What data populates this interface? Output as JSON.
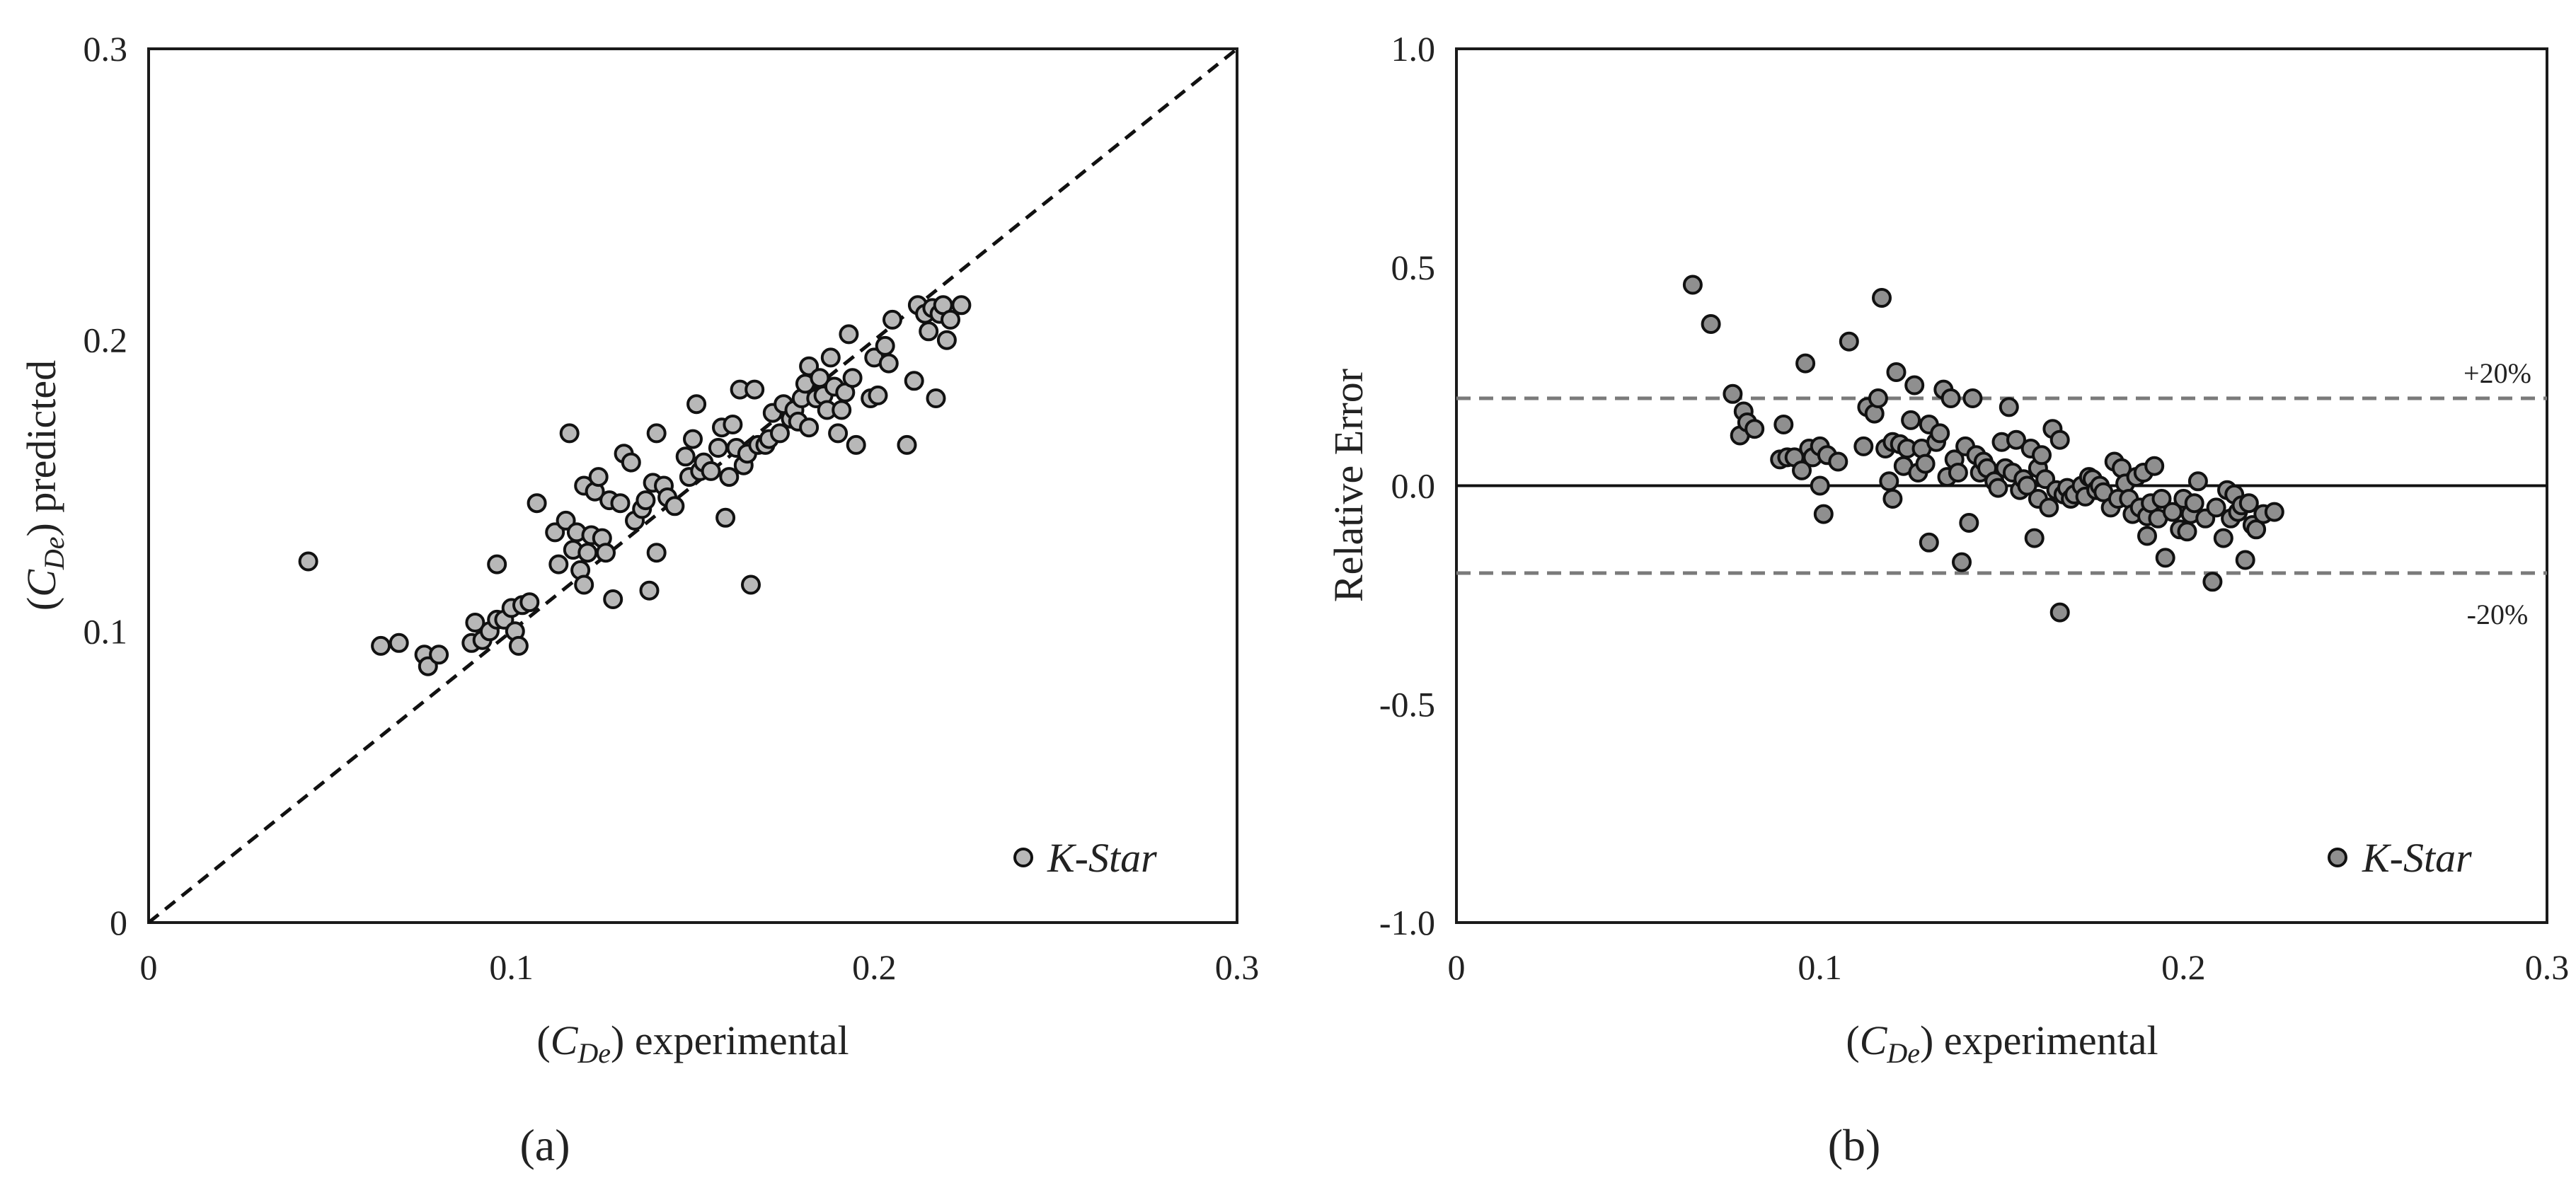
{
  "figure": {
    "panel_labels": [
      "(a)",
      "(b)"
    ]
  },
  "chart_data": [
    {
      "type": "scatter",
      "panel": "(a)",
      "xlabel_sym": "C",
      "xlabel_sub": "De",
      "xlabel_rest": "experimental",
      "ylabel_sym": "C",
      "ylabel_sub": "De",
      "ylabel_rest": "predicted",
      "xlim": [
        0,
        0.3
      ],
      "ylim": [
        0,
        0.3
      ],
      "xticks": [
        0,
        0.1,
        0.2,
        0.3
      ],
      "xtick_labels": [
        "0",
        "0.1",
        "0.2",
        "0.3"
      ],
      "yticks": [
        0,
        0.1,
        0.2,
        0.3
      ],
      "ytick_labels": [
        "0",
        "0.1",
        "0.2",
        "0.3"
      ],
      "grid": false,
      "legend_position": "bottom-right",
      "reference_line": {
        "style": "dashed",
        "from": [
          0,
          0
        ],
        "to": [
          0.3,
          0.3
        ]
      },
      "series": [
        {
          "name": "K-Star",
          "color": "#b8b8b8",
          "points": [
            [
              0.044,
              0.124
            ],
            [
              0.064,
              0.095
            ],
            [
              0.069,
              0.096
            ],
            [
              0.076,
              0.092
            ],
            [
              0.077,
              0.088
            ],
            [
              0.08,
              0.092
            ],
            [
              0.089,
              0.096
            ],
            [
              0.09,
              0.103
            ],
            [
              0.092,
              0.097
            ],
            [
              0.094,
              0.1
            ],
            [
              0.096,
              0.104
            ],
            [
              0.096,
              0.123
            ],
            [
              0.098,
              0.104
            ],
            [
              0.1,
              0.108
            ],
            [
              0.101,
              0.1
            ],
            [
              0.102,
              0.095
            ],
            [
              0.103,
              0.109
            ],
            [
              0.105,
              0.11
            ],
            [
              0.107,
              0.144
            ],
            [
              0.112,
              0.134
            ],
            [
              0.113,
              0.123
            ],
            [
              0.115,
              0.138
            ],
            [
              0.116,
              0.168
            ],
            [
              0.117,
              0.128
            ],
            [
              0.118,
              0.134
            ],
            [
              0.119,
              0.121
            ],
            [
              0.12,
              0.116
            ],
            [
              0.12,
              0.15
            ],
            [
              0.121,
              0.127
            ],
            [
              0.122,
              0.133
            ],
            [
              0.123,
              0.148
            ],
            [
              0.124,
              0.153
            ],
            [
              0.125,
              0.132
            ],
            [
              0.126,
              0.127
            ],
            [
              0.127,
              0.145
            ],
            [
              0.128,
              0.111
            ],
            [
              0.13,
              0.144
            ],
            [
              0.131,
              0.161
            ],
            [
              0.133,
              0.158
            ],
            [
              0.134,
              0.138
            ],
            [
              0.136,
              0.142
            ],
            [
              0.137,
              0.145
            ],
            [
              0.138,
              0.114
            ],
            [
              0.139,
              0.151
            ],
            [
              0.14,
              0.127
            ],
            [
              0.14,
              0.168
            ],
            [
              0.142,
              0.15
            ],
            [
              0.143,
              0.146
            ],
            [
              0.145,
              0.143
            ],
            [
              0.148,
              0.16
            ],
            [
              0.149,
              0.153
            ],
            [
              0.15,
              0.166
            ],
            [
              0.151,
              0.178
            ],
            [
              0.152,
              0.155
            ],
            [
              0.153,
              0.158
            ],
            [
              0.155,
              0.155
            ],
            [
              0.157,
              0.163
            ],
            [
              0.158,
              0.17
            ],
            [
              0.159,
              0.139
            ],
            [
              0.16,
              0.153
            ],
            [
              0.161,
              0.171
            ],
            [
              0.162,
              0.163
            ],
            [
              0.163,
              0.183
            ],
            [
              0.164,
              0.157
            ],
            [
              0.165,
              0.161
            ],
            [
              0.166,
              0.116
            ],
            [
              0.167,
              0.183
            ],
            [
              0.168,
              0.164
            ],
            [
              0.17,
              0.164
            ],
            [
              0.171,
              0.166
            ],
            [
              0.172,
              0.175
            ],
            [
              0.174,
              0.168
            ],
            [
              0.175,
              0.178
            ],
            [
              0.177,
              0.173
            ],
            [
              0.178,
              0.176
            ],
            [
              0.179,
              0.172
            ],
            [
              0.18,
              0.18
            ],
            [
              0.181,
              0.185
            ],
            [
              0.182,
              0.17
            ],
            [
              0.182,
              0.191
            ],
            [
              0.184,
              0.18
            ],
            [
              0.185,
              0.187
            ],
            [
              0.186,
              0.181
            ],
            [
              0.187,
              0.176
            ],
            [
              0.188,
              0.194
            ],
            [
              0.189,
              0.184
            ],
            [
              0.19,
              0.168
            ],
            [
              0.191,
              0.176
            ],
            [
              0.192,
              0.182
            ],
            [
              0.193,
              0.202
            ],
            [
              0.194,
              0.187
            ],
            [
              0.195,
              0.164
            ],
            [
              0.199,
              0.18
            ],
            [
              0.2,
              0.194
            ],
            [
              0.201,
              0.181
            ],
            [
              0.203,
              0.198
            ],
            [
              0.204,
              0.192
            ],
            [
              0.205,
              0.207
            ],
            [
              0.209,
              0.164
            ],
            [
              0.211,
              0.186
            ],
            [
              0.212,
              0.212
            ],
            [
              0.214,
              0.209
            ],
            [
              0.215,
              0.203
            ],
            [
              0.216,
              0.211
            ],
            [
              0.217,
              0.18
            ],
            [
              0.218,
              0.209
            ],
            [
              0.219,
              0.212
            ],
            [
              0.22,
              0.2
            ],
            [
              0.221,
              0.207
            ],
            [
              0.224,
              0.212
            ]
          ]
        }
      ]
    },
    {
      "type": "scatter",
      "panel": "(b)",
      "xlabel_sym": "C",
      "xlabel_sub": "De",
      "xlabel_rest": "experimental",
      "ylabel": "Relative Error",
      "xlim": [
        0,
        0.3
      ],
      "ylim": [
        -1.0,
        1.0
      ],
      "xticks": [
        0,
        0.1,
        0.2,
        0.3
      ],
      "xtick_labels": [
        "0",
        "0.1",
        "0.2",
        "0.3"
      ],
      "yticks": [
        -1.0,
        -0.5,
        0.0,
        0.5,
        1.0
      ],
      "ytick_labels": [
        "-1.0",
        "-0.5",
        "0.0",
        "0.5",
        "1.0"
      ],
      "grid": false,
      "legend_position": "bottom-right",
      "reference_lines": [
        {
          "y": 0.0,
          "style": "solid",
          "label": ""
        },
        {
          "y": 0.2,
          "style": "dashed",
          "label": "+20%"
        },
        {
          "y": -0.2,
          "style": "dashed",
          "label": "-20%"
        }
      ],
      "series": [
        {
          "name": "K-Star",
          "color": "#8f8f8f",
          "points": [
            [
              0.065,
              0.46
            ],
            [
              0.07,
              0.37
            ],
            [
              0.076,
              0.21
            ],
            [
              0.078,
              0.115
            ],
            [
              0.079,
              0.17
            ],
            [
              0.08,
              0.145
            ],
            [
              0.082,
              0.13
            ],
            [
              0.089,
              0.06
            ],
            [
              0.09,
              0.14
            ],
            [
              0.091,
              0.065
            ],
            [
              0.093,
              0.065
            ],
            [
              0.095,
              0.035
            ],
            [
              0.096,
              0.28
            ],
            [
              0.097,
              0.085
            ],
            [
              0.098,
              0.065
            ],
            [
              0.1,
              0.09
            ],
            [
              0.1,
              0.0
            ],
            [
              0.101,
              -0.065
            ],
            [
              0.102,
              0.07
            ],
            [
              0.105,
              0.055
            ],
            [
              0.108,
              0.33
            ],
            [
              0.112,
              0.09
            ],
            [
              0.113,
              0.18
            ],
            [
              0.115,
              0.165
            ],
            [
              0.116,
              0.2
            ],
            [
              0.117,
              0.43
            ],
            [
              0.118,
              0.085
            ],
            [
              0.119,
              0.01
            ],
            [
              0.12,
              0.1
            ],
            [
              0.12,
              -0.03
            ],
            [
              0.121,
              0.26
            ],
            [
              0.122,
              0.095
            ],
            [
              0.123,
              0.045
            ],
            [
              0.124,
              0.085
            ],
            [
              0.125,
              0.15
            ],
            [
              0.126,
              0.23
            ],
            [
              0.127,
              0.03
            ],
            [
              0.128,
              0.085
            ],
            [
              0.129,
              0.05
            ],
            [
              0.13,
              -0.13
            ],
            [
              0.13,
              0.14
            ],
            [
              0.132,
              0.1
            ],
            [
              0.133,
              0.12
            ],
            [
              0.134,
              0.22
            ],
            [
              0.135,
              0.02
            ],
            [
              0.136,
              0.2
            ],
            [
              0.137,
              0.06
            ],
            [
              0.138,
              0.03
            ],
            [
              0.139,
              -0.175
            ],
            [
              0.14,
              0.09
            ],
            [
              0.141,
              -0.085
            ],
            [
              0.142,
              0.2
            ],
            [
              0.143,
              0.07
            ],
            [
              0.144,
              0.03
            ],
            [
              0.145,
              0.055
            ],
            [
              0.146,
              0.04
            ],
            [
              0.148,
              0.01
            ],
            [
              0.149,
              -0.005
            ],
            [
              0.15,
              0.1
            ],
            [
              0.151,
              0.04
            ],
            [
              0.152,
              0.18
            ],
            [
              0.153,
              0.03
            ],
            [
              0.154,
              0.105
            ],
            [
              0.155,
              -0.01
            ],
            [
              0.156,
              0.015
            ],
            [
              0.157,
              0.0
            ],
            [
              0.158,
              0.085
            ],
            [
              0.159,
              -0.12
            ],
            [
              0.16,
              0.04
            ],
            [
              0.16,
              -0.03
            ],
            [
              0.161,
              0.07
            ],
            [
              0.162,
              0.015
            ],
            [
              0.163,
              -0.05
            ],
            [
              0.164,
              0.13
            ],
            [
              0.165,
              -0.01
            ],
            [
              0.166,
              -0.29
            ],
            [
              0.166,
              0.105
            ],
            [
              0.167,
              -0.02
            ],
            [
              0.168,
              -0.005
            ],
            [
              0.169,
              -0.03
            ],
            [
              0.17,
              -0.02
            ],
            [
              0.172,
              0.0
            ],
            [
              0.173,
              -0.025
            ],
            [
              0.174,
              0.02
            ],
            [
              0.175,
              0.015
            ],
            [
              0.176,
              -0.01
            ],
            [
              0.177,
              0.0
            ],
            [
              0.178,
              -0.015
            ],
            [
              0.18,
              -0.05
            ],
            [
              0.181,
              0.055
            ],
            [
              0.182,
              -0.03
            ],
            [
              0.183,
              0.04
            ],
            [
              0.184,
              0.005
            ],
            [
              0.185,
              -0.03
            ],
            [
              0.186,
              -0.065
            ],
            [
              0.187,
              0.02
            ],
            [
              0.188,
              -0.05
            ],
            [
              0.189,
              0.03
            ],
            [
              0.19,
              -0.07
            ],
            [
              0.19,
              -0.115
            ],
            [
              0.191,
              -0.04
            ],
            [
              0.192,
              0.045
            ],
            [
              0.193,
              -0.075
            ],
            [
              0.194,
              -0.03
            ],
            [
              0.195,
              -0.165
            ],
            [
              0.197,
              -0.06
            ],
            [
              0.199,
              -0.1
            ],
            [
              0.2,
              -0.03
            ],
            [
              0.201,
              -0.105
            ],
            [
              0.202,
              -0.065
            ],
            [
              0.203,
              -0.04
            ],
            [
              0.204,
              0.01
            ],
            [
              0.206,
              -0.075
            ],
            [
              0.208,
              -0.22
            ],
            [
              0.209,
              -0.05
            ],
            [
              0.211,
              -0.12
            ],
            [
              0.212,
              -0.01
            ],
            [
              0.213,
              -0.075
            ],
            [
              0.214,
              -0.02
            ],
            [
              0.215,
              -0.06
            ],
            [
              0.216,
              -0.045
            ],
            [
              0.217,
              -0.17
            ],
            [
              0.218,
              -0.04
            ],
            [
              0.219,
              -0.09
            ],
            [
              0.22,
              -0.1
            ],
            [
              0.222,
              -0.065
            ],
            [
              0.225,
              -0.06
            ]
          ]
        }
      ]
    }
  ]
}
